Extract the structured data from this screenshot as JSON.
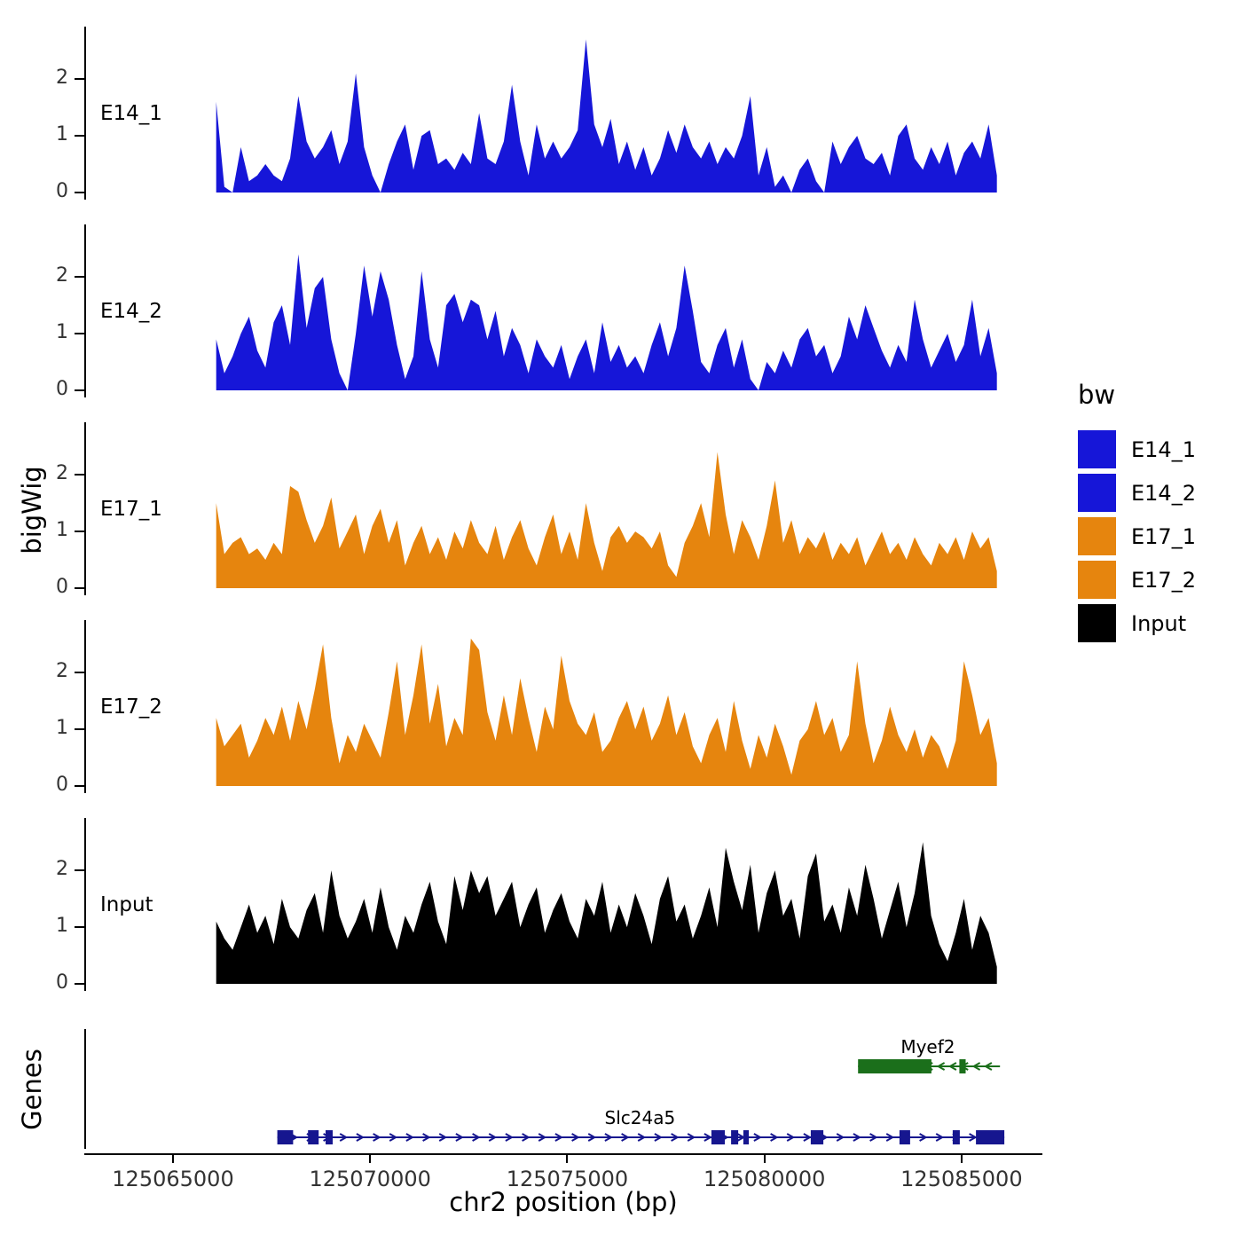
{
  "figure": {
    "y_axis_title_tracks": "bigWig",
    "y_axis_title_genes": "Genes",
    "x_axis_title": "chr2 position (bp)"
  },
  "legend": {
    "title": "bw",
    "items": [
      {
        "label": "E14_1",
        "color": "#1616D8"
      },
      {
        "label": "E14_2",
        "color": "#1616D8"
      },
      {
        "label": "E17_1",
        "color": "#E6850E"
      },
      {
        "label": "E17_2",
        "color": "#E6850E"
      },
      {
        "label": "Input",
        "color": "#000000"
      }
    ]
  },
  "chart_data": {
    "type": "area",
    "title": "",
    "xlabel": "chr2 position (bp)",
    "ylabel": "bigWig",
    "x_domain": [
      125062750,
      125087050
    ],
    "coverage_start": 125066050,
    "coverage_end": 125085850,
    "ymax": 2.8,
    "y_ticks": [
      0,
      1,
      2
    ],
    "x_ticks": [
      {
        "value": 125065000,
        "label": "125065000"
      },
      {
        "value": 125070000,
        "label": "125070000"
      },
      {
        "value": 125075000,
        "label": "125075000"
      },
      {
        "value": 125080000,
        "label": "125080000"
      },
      {
        "value": 125085000,
        "label": "125085000"
      }
    ],
    "tracks": [
      {
        "id": "E14_1",
        "label": "E14_1",
        "color": "#1616D8",
        "values": [
          1.6,
          0.1,
          0.0,
          0.8,
          0.2,
          0.3,
          0.5,
          0.3,
          0.2,
          0.6,
          1.7,
          0.9,
          0.6,
          0.8,
          1.1,
          0.5,
          0.9,
          2.1,
          0.8,
          0.3,
          0.0,
          0.5,
          0.9,
          1.2,
          0.4,
          1.0,
          1.1,
          0.5,
          0.6,
          0.4,
          0.7,
          0.5,
          1.4,
          0.6,
          0.5,
          0.9,
          1.9,
          0.9,
          0.3,
          1.2,
          0.6,
          0.9,
          0.6,
          0.8,
          1.1,
          2.7,
          1.2,
          0.8,
          1.3,
          0.5,
          0.9,
          0.4,
          0.8,
          0.3,
          0.6,
          1.1,
          0.7,
          1.2,
          0.8,
          0.6,
          0.9,
          0.5,
          0.8,
          0.6,
          1.0,
          1.7,
          0.3,
          0.8,
          0.1,
          0.3,
          0.0,
          0.4,
          0.6,
          0.2,
          0.0,
          0.9,
          0.5,
          0.8,
          1.0,
          0.6,
          0.5,
          0.7,
          0.3,
          1.0,
          1.2,
          0.6,
          0.4,
          0.8,
          0.5,
          0.9,
          0.3,
          0.7,
          0.9,
          0.6,
          1.2,
          0.3
        ]
      },
      {
        "id": "E14_2",
        "label": "E14_2",
        "color": "#1616D8",
        "values": [
          0.9,
          0.3,
          0.6,
          1.0,
          1.3,
          0.7,
          0.4,
          1.2,
          1.5,
          0.8,
          2.4,
          1.1,
          1.8,
          2.0,
          0.9,
          0.3,
          0.0,
          1.0,
          2.2,
          1.3,
          2.1,
          1.6,
          0.8,
          0.2,
          0.6,
          2.1,
          0.9,
          0.4,
          1.5,
          1.7,
          1.2,
          1.6,
          1.5,
          0.9,
          1.4,
          0.6,
          1.1,
          0.8,
          0.3,
          0.9,
          0.6,
          0.4,
          0.8,
          0.2,
          0.6,
          0.9,
          0.3,
          1.2,
          0.5,
          0.8,
          0.4,
          0.6,
          0.3,
          0.8,
          1.2,
          0.6,
          1.1,
          2.2,
          1.4,
          0.5,
          0.3,
          0.8,
          1.1,
          0.4,
          0.9,
          0.2,
          0.0,
          0.5,
          0.3,
          0.7,
          0.4,
          0.9,
          1.1,
          0.6,
          0.8,
          0.3,
          0.6,
          1.3,
          0.9,
          1.5,
          1.1,
          0.7,
          0.4,
          0.8,
          0.5,
          1.6,
          0.9,
          0.4,
          0.7,
          1.0,
          0.5,
          0.8,
          1.6,
          0.6,
          1.1,
          0.3
        ]
      },
      {
        "id": "E17_1",
        "label": "E17_1",
        "color": "#E6850E",
        "values": [
          1.5,
          0.6,
          0.8,
          0.9,
          0.6,
          0.7,
          0.5,
          0.8,
          0.6,
          1.8,
          1.7,
          1.2,
          0.8,
          1.1,
          1.6,
          0.7,
          1.0,
          1.3,
          0.6,
          1.1,
          1.4,
          0.8,
          1.2,
          0.4,
          0.8,
          1.1,
          0.6,
          0.9,
          0.5,
          1.0,
          0.7,
          1.2,
          0.8,
          0.6,
          1.1,
          0.5,
          0.9,
          1.2,
          0.7,
          0.4,
          0.9,
          1.3,
          0.6,
          1.0,
          0.5,
          1.5,
          0.8,
          0.3,
          0.9,
          1.1,
          0.8,
          1.0,
          0.9,
          0.7,
          1.0,
          0.4,
          0.2,
          0.8,
          1.1,
          1.5,
          0.9,
          2.4,
          1.3,
          0.6,
          1.2,
          0.9,
          0.5,
          1.1,
          1.9,
          0.8,
          1.2,
          0.6,
          0.9,
          0.7,
          1.0,
          0.5,
          0.8,
          0.6,
          0.9,
          0.4,
          0.7,
          1.0,
          0.6,
          0.8,
          0.5,
          0.9,
          0.6,
          0.4,
          0.8,
          0.6,
          0.9,
          0.5,
          1.0,
          0.7,
          0.9,
          0.3
        ]
      },
      {
        "id": "E17_2",
        "label": "E17_2",
        "color": "#E6850E",
        "values": [
          1.2,
          0.7,
          0.9,
          1.1,
          0.5,
          0.8,
          1.2,
          0.9,
          1.4,
          0.8,
          1.5,
          1.0,
          1.7,
          2.5,
          1.2,
          0.4,
          0.9,
          0.6,
          1.1,
          0.8,
          0.5,
          1.3,
          2.2,
          0.9,
          1.6,
          2.5,
          1.1,
          1.8,
          0.7,
          1.2,
          0.9,
          2.6,
          2.4,
          1.3,
          0.8,
          1.6,
          0.9,
          1.9,
          1.2,
          0.6,
          1.4,
          1.0,
          2.3,
          1.5,
          1.1,
          0.9,
          1.3,
          0.6,
          0.8,
          1.2,
          1.5,
          1.0,
          1.4,
          0.8,
          1.1,
          1.6,
          0.9,
          1.3,
          0.7,
          0.4,
          0.9,
          1.2,
          0.6,
          1.5,
          0.8,
          0.3,
          0.9,
          0.5,
          1.1,
          0.7,
          0.2,
          0.8,
          1.0,
          1.5,
          0.9,
          1.2,
          0.6,
          0.9,
          2.2,
          1.1,
          0.4,
          0.8,
          1.4,
          0.9,
          0.6,
          1.0,
          0.5,
          0.9,
          0.7,
          0.3,
          0.8,
          2.2,
          1.6,
          0.9,
          1.2,
          0.4
        ]
      },
      {
        "id": "Input",
        "label": "Input",
        "color": "#000000",
        "values": [
          1.1,
          0.8,
          0.6,
          1.0,
          1.4,
          0.9,
          1.2,
          0.7,
          1.5,
          1.0,
          0.8,
          1.3,
          1.6,
          0.9,
          2.0,
          1.2,
          0.8,
          1.1,
          1.5,
          0.9,
          1.7,
          1.0,
          0.6,
          1.2,
          0.9,
          1.4,
          1.8,
          1.1,
          0.7,
          1.9,
          1.3,
          2.0,
          1.6,
          1.9,
          1.2,
          1.5,
          1.8,
          1.0,
          1.4,
          1.7,
          0.9,
          1.3,
          1.6,
          1.1,
          0.8,
          1.5,
          1.2,
          1.8,
          0.9,
          1.4,
          1.0,
          1.6,
          1.2,
          0.7,
          1.5,
          1.9,
          1.1,
          1.4,
          0.8,
          1.2,
          1.7,
          1.0,
          2.4,
          1.8,
          1.3,
          2.1,
          0.9,
          1.6,
          2.0,
          1.2,
          1.5,
          0.8,
          1.9,
          2.3,
          1.1,
          1.4,
          0.9,
          1.7,
          1.2,
          2.1,
          1.5,
          0.8,
          1.3,
          1.8,
          1.0,
          1.6,
          2.5,
          1.2,
          0.7,
          0.4,
          0.9,
          1.5,
          0.6,
          1.2,
          0.9,
          0.3
        ]
      }
    ],
    "genes": [
      {
        "name": "Myef2",
        "strand": "-",
        "color": "#1B6F1B",
        "row": "top",
        "start": 125082330,
        "end": 125085930,
        "exons": [
          [
            125082330,
            125084190
          ],
          [
            125084900,
            125085060
          ]
        ],
        "label_bp": 125084100,
        "arrow_spacing": 300
      },
      {
        "name": "Slc24a5",
        "strand": "+",
        "color": "#16168F",
        "row": "bottom",
        "start": 125067600,
        "end": 125086040,
        "exons": [
          [
            125067600,
            125068000
          ],
          [
            125068380,
            125068650
          ],
          [
            125068825,
            125069005
          ],
          [
            125078610,
            125078950
          ],
          [
            125079110,
            125079290
          ],
          [
            125079420,
            125079560
          ],
          [
            125081130,
            125081450
          ],
          [
            125083380,
            125083650
          ],
          [
            125084730,
            125084910
          ],
          [
            125085320,
            125086040
          ]
        ],
        "label_bp": 125076800,
        "arrow_spacing": 420
      }
    ]
  }
}
